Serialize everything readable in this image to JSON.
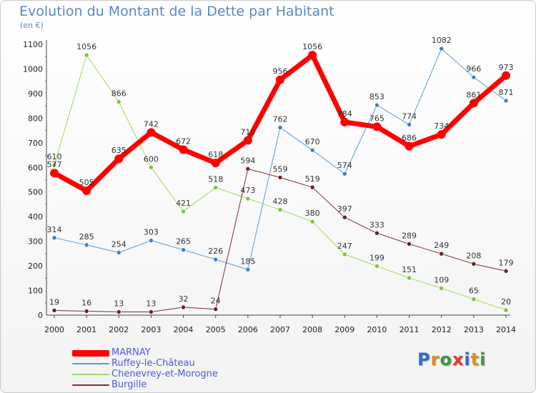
{
  "title": "Evolution du Montant de la Dette par Habitant",
  "subtitle": "(en €)",
  "logo": {
    "letters": [
      "P",
      "r",
      "o",
      "x",
      "i",
      "t",
      "i"
    ],
    "colors": [
      "#2e6fd1",
      "#e38a1f",
      "#3a9a3a",
      "#e23b2e",
      "#2e6fd1",
      "#e38a1f",
      "#3a9a3a"
    ]
  },
  "chart_data": {
    "type": "line",
    "x": [
      "2000",
      "2001",
      "2002",
      "2003",
      "2004",
      "2005",
      "2006",
      "2007",
      "2008",
      "2009",
      "2010",
      "2011",
      "2012",
      "2013",
      "2014"
    ],
    "ylim": [
      0,
      1100
    ],
    "yticks": [
      "0",
      "100",
      "200",
      "300",
      "400",
      "500",
      "600",
      "700",
      "800",
      "900",
      "1000",
      "1100"
    ],
    "grid": false,
    "legend_position": "bottom-left",
    "series": [
      {
        "name": "Ruffey-le-Château",
        "color": "#5b9bd5",
        "marker": "#3f7fc0",
        "width": 1,
        "values": [
          314,
          285,
          254,
          303,
          265,
          226,
          185,
          762,
          670,
          574,
          853,
          774,
          1082,
          966,
          871
        ],
        "labels": [
          "314",
          "285",
          "254",
          "303",
          "265",
          "226",
          "185",
          "762",
          "670",
          "574",
          "853",
          "774",
          "1082",
          "966",
          "871"
        ]
      },
      {
        "name": "Chenevrey-et-Morogne",
        "color": "#99dd55",
        "marker": "#7cc43a",
        "width": 1,
        "values": [
          610,
          1056,
          866,
          600,
          421,
          518,
          473,
          428,
          380,
          247,
          199,
          151,
          109,
          65,
          20
        ],
        "labels": [
          "610",
          "1056",
          "866",
          "600",
          "421",
          "518",
          "473",
          "428",
          "380",
          "247",
          "199",
          "151",
          "109",
          "65",
          "20"
        ]
      },
      {
        "name": "Burgille",
        "color": "#7a2f2f",
        "marker": "#6a2222",
        "width": 1,
        "values": [
          19,
          16,
          13,
          13,
          32,
          24,
          594,
          559,
          519,
          397,
          333,
          289,
          249,
          208,
          179
        ],
        "labels": [
          "19",
          "16",
          "13",
          "13",
          "32",
          "24",
          "594",
          "559",
          "519",
          "397",
          "333",
          "289",
          "249",
          "208",
          "179"
        ]
      },
      {
        "name": "MARNAY",
        "color": "#ff0000",
        "marker": "#ff0000",
        "width": 7,
        "values": [
          577,
          505,
          635,
          742,
          672,
          618,
          710,
          956,
          1056,
          784,
          765,
          686,
          734,
          861,
          973
        ],
        "labels": [
          "577",
          "505",
          "635",
          "742",
          "672",
          "618",
          "710",
          "956",
          "1056",
          "784",
          "765",
          "686",
          "734",
          "861",
          "973"
        ]
      }
    ],
    "legend_order": [
      "MARNAY",
      "Ruffey-le-Château",
      "Chenevrey-et-Morogne",
      "Burgille"
    ]
  }
}
